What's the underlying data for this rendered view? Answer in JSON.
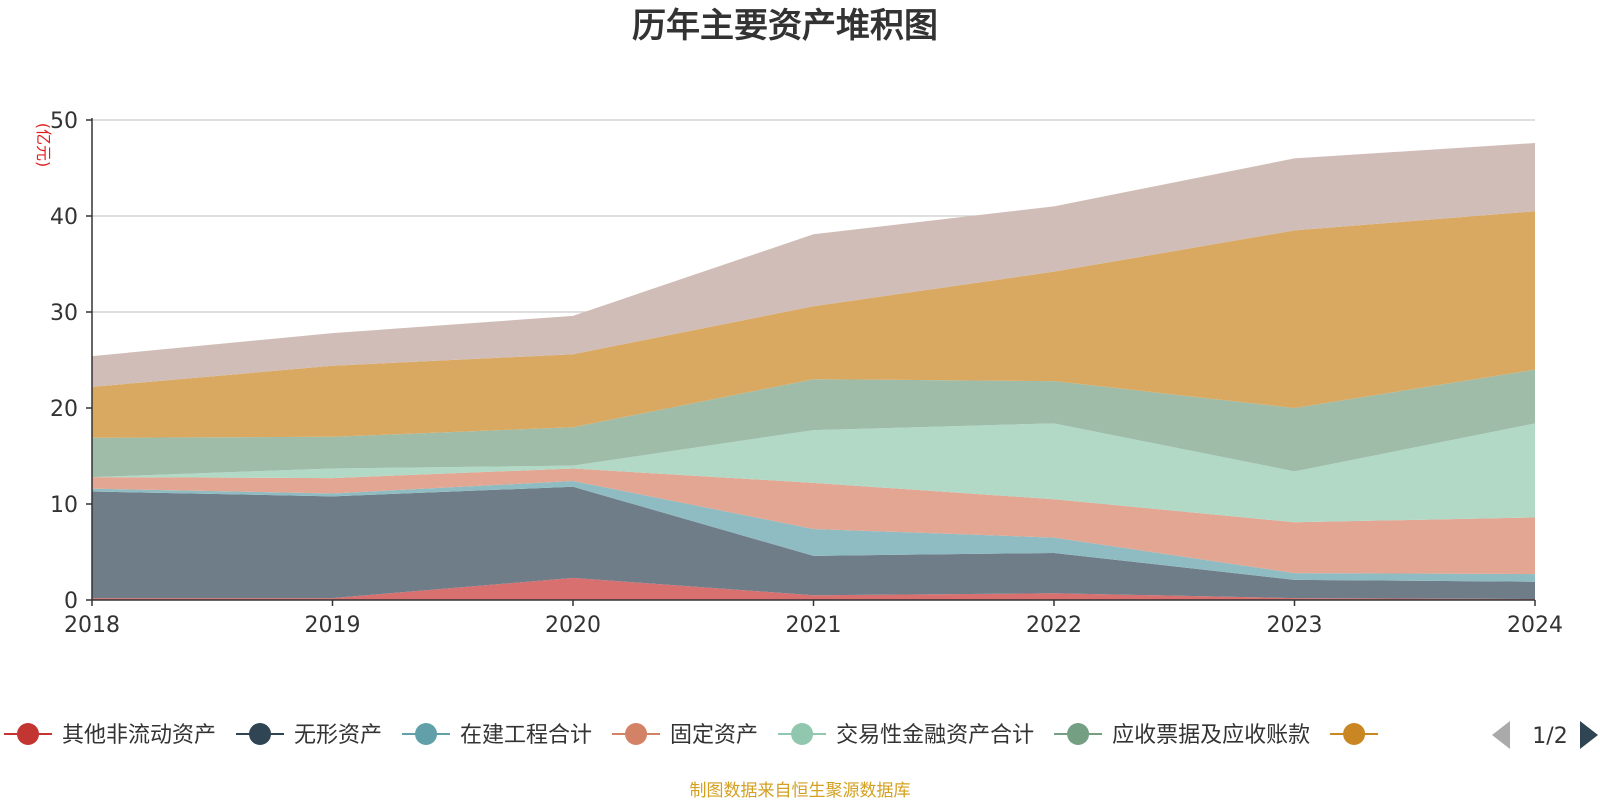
{
  "chart_data": {
    "type": "area",
    "stacked": true,
    "title": "历年主要资产堆积图",
    "ylabel": "(亿元)",
    "xlabel": "",
    "ylim": [
      0,
      50
    ],
    "yticks": [
      0,
      10,
      20,
      30,
      40,
      50
    ],
    "grid": true,
    "categories": [
      "2018",
      "2019",
      "2020",
      "2021",
      "2022",
      "2023",
      "2024"
    ],
    "series": [
      {
        "name": "其他非流动资产",
        "color": "#c23531",
        "fill": "#d87070",
        "values": [
          0.2,
          0.2,
          2.3,
          0.5,
          0.7,
          0.2,
          0.1
        ]
      },
      {
        "name": "无形资产",
        "color": "#2f4554",
        "fill": "#6e7d88",
        "values": [
          11.1,
          10.6,
          9.5,
          4.1,
          4.2,
          1.9,
          1.8
        ]
      },
      {
        "name": "在建工程合计",
        "color": "#61a0a8",
        "fill": "#8fbcc2",
        "values": [
          0.3,
          0.3,
          0.6,
          2.8,
          1.6,
          0.7,
          0.8
        ]
      },
      {
        "name": "固定资产",
        "color": "#d48265",
        "fill": "#e2a692",
        "values": [
          1.2,
          1.6,
          1.3,
          4.8,
          4.0,
          5.3,
          5.9
        ]
      },
      {
        "name": "交易性金融资产合计",
        "color": "#91c7ae",
        "fill": "#b1d9c6",
        "values": [
          0.0,
          1.0,
          0.3,
          5.5,
          7.9,
          5.3,
          9.8
        ]
      },
      {
        "name": "应收票据及应收账款",
        "color": "#749f83",
        "fill": "#9fbca8",
        "values": [
          4.1,
          3.3,
          4.0,
          5.3,
          4.4,
          6.6,
          5.6
        ]
      },
      {
        "name": "",
        "color": "#ca8622",
        "fill": "#d9a962",
        "values": [
          5.3,
          7.4,
          7.6,
          7.6,
          11.4,
          18.5,
          16.5
        ]
      },
      {
        "name": "",
        "color": "#bda29a",
        "fill": "#d1bdb7",
        "values": [
          3.2,
          3.4,
          4.0,
          7.5,
          6.8,
          7.5,
          7.1
        ]
      }
    ]
  },
  "legend": {
    "visible_count": 7,
    "pager_text": "1/2"
  },
  "footer": {
    "source": "制图数据来自恒生聚源数据库"
  }
}
